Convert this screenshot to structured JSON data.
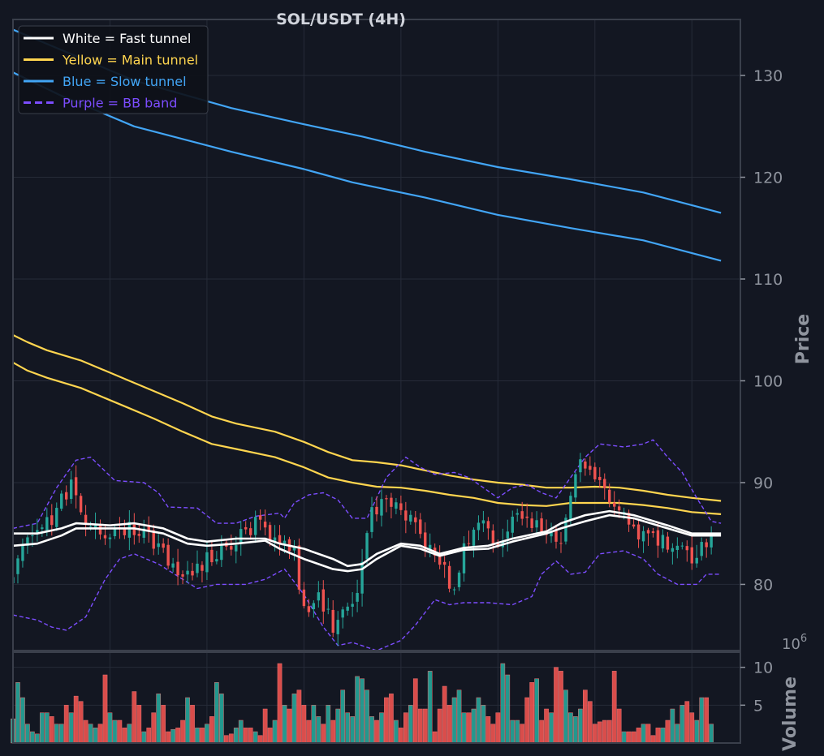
{
  "theme": {
    "background": "#131722",
    "panel": "#131722",
    "grid": "#262b38",
    "spine": "#3a3f4b",
    "tick_text": "#8f949e",
    "title_text": "#d1d4dc",
    "up_color": "#26a69a",
    "down_color": "#ef5350",
    "fast_color": "#ffffff",
    "main_color": "#ffd54f",
    "slow_color": "#42a5f5",
    "bb_color": "#7c4dff"
  },
  "chart_data": {
    "type": "candlestick",
    "title": "SOL/USDT (4H)",
    "price_axis": {
      "label": "Price",
      "ylim": [
        73.5,
        135.5
      ],
      "ticks": [
        80,
        90,
        100,
        110,
        120,
        130
      ]
    },
    "volume_axis": {
      "label": "Volume",
      "exponent_label": "1e6",
      "ylim": [
        0,
        12
      ],
      "ticks": [
        5,
        10
      ]
    },
    "grid": true,
    "legend": {
      "placement": "top-left",
      "entries": [
        {
          "label": "White = Fast tunnel",
          "color": "#ffffff",
          "style": "solid"
        },
        {
          "label": "Yellow = Main tunnel",
          "color": "#ffd54f",
          "style": "solid"
        },
        {
          "label": "Blue = Slow tunnel",
          "color": "#42a5f5",
          "style": "solid"
        },
        {
          "label": "Purple = BB band",
          "color": "#7c4dff",
          "style": "dashed"
        }
      ]
    },
    "x_index_range": [
      0,
      150
    ],
    "price_path": [
      [
        0,
        80.0
      ],
      [
        2,
        84.5
      ],
      [
        5,
        84.8
      ],
      [
        8,
        86.5
      ],
      [
        12,
        90.0
      ],
      [
        15,
        86.0
      ],
      [
        20,
        85.0
      ],
      [
        25,
        85.5
      ],
      [
        30,
        84.0
      ],
      [
        33,
        81.8
      ],
      [
        36,
        81.0
      ],
      [
        40,
        82.5
      ],
      [
        45,
        84.0
      ],
      [
        50,
        86.0
      ],
      [
        55,
        84.5
      ],
      [
        58,
        83.0
      ],
      [
        60,
        77.5
      ],
      [
        63,
        78.5
      ],
      [
        66,
        76.0
      ],
      [
        70,
        78.0
      ],
      [
        72,
        81.5
      ],
      [
        74,
        87.5
      ],
      [
        77,
        88.0
      ],
      [
        80,
        87.0
      ],
      [
        83,
        86.5
      ],
      [
        85,
        84.0
      ],
      [
        88,
        82.0
      ],
      [
        91,
        79.5
      ],
      [
        93,
        84.0
      ],
      [
        96,
        86.0
      ],
      [
        100,
        84.0
      ],
      [
        103,
        86.5
      ],
      [
        105,
        87.0
      ],
      [
        110,
        85.0
      ],
      [
        113,
        84.5
      ],
      [
        115,
        89.0
      ],
      [
        117,
        92.0
      ],
      [
        119,
        91.0
      ],
      [
        121,
        90.0
      ],
      [
        123,
        88.5
      ],
      [
        125,
        88.0
      ],
      [
        128,
        85.0
      ],
      [
        131,
        84.5
      ],
      [
        135,
        84.0
      ],
      [
        140,
        82.5
      ],
      [
        143,
        84.0
      ],
      [
        145,
        86.0
      ],
      [
        146,
        85.5
      ]
    ],
    "volume_profile": [
      3.2,
      8.0,
      6.0,
      2.5,
      1.5,
      1.2,
      4.0,
      4.0,
      3.5,
      2.5,
      2.5,
      5.0,
      4.0,
      6.2,
      5.5,
      3.0,
      2.5,
      2.0,
      2.5,
      9.0,
      4.0,
      3.0,
      3.0,
      2.0,
      2.5,
      6.8,
      5.0,
      1.5,
      2.0,
      4.0,
      6.5,
      5.0,
      1.5,
      1.8,
      2.0,
      3.0,
      6.0,
      5.0,
      2.0,
      2.0,
      2.5,
      3.5,
      8.0,
      6.5,
      1.0,
      1.2,
      2.0,
      3.0,
      2.0,
      2.0,
      1.5,
      1.0,
      4.5,
      2.0,
      3.0,
      10.5,
      5.0,
      4.5,
      6.5,
      7.0,
      5.0,
      3.0,
      5.0,
      3.5,
      2.5,
      5.0,
      3.0,
      4.5,
      7.0,
      4.0,
      3.5,
      8.8,
      8.5,
      7.0,
      3.5,
      3.0,
      4.0,
      6.0,
      6.5,
      3.0,
      2.0,
      4.0,
      5.0,
      8.5,
      4.5,
      4.5,
      9.5,
      1.5,
      4.5,
      7.5,
      5.0,
      6.0,
      7.0,
      4.0,
      4.0,
      4.5,
      6.0,
      5.0,
      3.5,
      2.5,
      4.0,
      10.5,
      9.0,
      3.0,
      3.0,
      2.5,
      6.0,
      8.0,
      8.5,
      3.0,
      4.5,
      4.0,
      10.0,
      9.5,
      7.0,
      4.0,
      3.5,
      4.5,
      7.0,
      5.5,
      2.5,
      2.8,
      3.0,
      3.0,
      9.5,
      4.5,
      1.5,
      1.5,
      1.5,
      2.0,
      2.5,
      2.5,
      1.0,
      2.0,
      2.0,
      3.0,
      4.5,
      2.5,
      5.0,
      5.5,
      4.0,
      3.0,
      6.0,
      6.0,
      2.5
    ],
    "fast_tunnel": {
      "upper": [
        [
          0,
          85.0
        ],
        [
          5,
          85.0
        ],
        [
          10,
          85.5
        ],
        [
          13,
          86.0
        ],
        [
          20,
          85.8
        ],
        [
          25,
          86.0
        ],
        [
          31,
          85.5
        ],
        [
          36,
          84.5
        ],
        [
          40,
          84.2
        ],
        [
          46,
          84.5
        ],
        [
          52,
          84.5
        ],
        [
          55,
          84.0
        ],
        [
          60,
          83.5
        ],
        [
          66,
          82.5
        ],
        [
          69,
          81.8
        ],
        [
          72,
          82.0
        ],
        [
          75,
          83.0
        ],
        [
          80,
          84.0
        ],
        [
          84,
          83.8
        ],
        [
          88,
          83.0
        ],
        [
          93,
          83.6
        ],
        [
          98,
          83.8
        ],
        [
          103,
          84.5
        ],
        [
          110,
          85.2
        ],
        [
          113,
          86.0
        ],
        [
          118,
          86.8
        ],
        [
          123,
          87.2
        ],
        [
          128,
          86.8
        ],
        [
          135,
          85.8
        ],
        [
          140,
          85.0
        ],
        [
          146,
          85.0
        ]
      ],
      "lower": [
        [
          0,
          83.8
        ],
        [
          5,
          84.0
        ],
        [
          10,
          84.8
        ],
        [
          13,
          85.5
        ],
        [
          20,
          85.5
        ],
        [
          25,
          85.5
        ],
        [
          31,
          85.0
        ],
        [
          36,
          84.0
        ],
        [
          40,
          83.8
        ],
        [
          46,
          84.0
        ],
        [
          52,
          84.3
        ],
        [
          55,
          83.5
        ],
        [
          60,
          82.5
        ],
        [
          66,
          81.5
        ],
        [
          69,
          81.3
        ],
        [
          72,
          81.5
        ],
        [
          75,
          82.5
        ],
        [
          80,
          83.8
        ],
        [
          84,
          83.5
        ],
        [
          88,
          82.8
        ],
        [
          93,
          83.4
        ],
        [
          98,
          83.5
        ],
        [
          103,
          84.2
        ],
        [
          110,
          85.0
        ],
        [
          113,
          85.5
        ],
        [
          118,
          86.2
        ],
        [
          123,
          86.8
        ],
        [
          128,
          86.5
        ],
        [
          135,
          85.5
        ],
        [
          140,
          84.8
        ],
        [
          146,
          84.8
        ]
      ]
    },
    "main_tunnel": {
      "upper": [
        [
          0,
          104.5
        ],
        [
          3,
          103.8
        ],
        [
          7,
          103.0
        ],
        [
          14,
          102.0
        ],
        [
          19,
          101.0
        ],
        [
          24,
          100.0
        ],
        [
          29,
          99.0
        ],
        [
          35,
          97.8
        ],
        [
          41,
          96.5
        ],
        [
          46,
          95.8
        ],
        [
          54,
          95.0
        ],
        [
          60,
          94.0
        ],
        [
          65,
          93.0
        ],
        [
          70,
          92.2
        ],
        [
          75,
          92.0
        ],
        [
          80,
          91.7
        ],
        [
          85,
          91.2
        ],
        [
          90,
          90.7
        ],
        [
          95,
          90.3
        ],
        [
          100,
          90.0
        ],
        [
          105,
          89.8
        ],
        [
          110,
          89.5
        ],
        [
          115,
          89.5
        ],
        [
          120,
          89.6
        ],
        [
          125,
          89.5
        ],
        [
          130,
          89.2
        ],
        [
          135,
          88.8
        ],
        [
          140,
          88.5
        ],
        [
          146,
          88.2
        ]
      ],
      "lower": [
        [
          0,
          101.8
        ],
        [
          3,
          101.0
        ],
        [
          7,
          100.3
        ],
        [
          14,
          99.3
        ],
        [
          19,
          98.3
        ],
        [
          24,
          97.3
        ],
        [
          29,
          96.3
        ],
        [
          35,
          95.0
        ],
        [
          41,
          93.8
        ],
        [
          46,
          93.3
        ],
        [
          54,
          92.5
        ],
        [
          60,
          91.5
        ],
        [
          65,
          90.5
        ],
        [
          70,
          90.0
        ],
        [
          75,
          89.6
        ],
        [
          80,
          89.5
        ],
        [
          85,
          89.2
        ],
        [
          90,
          88.8
        ],
        [
          95,
          88.5
        ],
        [
          100,
          88.0
        ],
        [
          105,
          87.8
        ],
        [
          110,
          87.7
        ],
        [
          115,
          88.0
        ],
        [
          120,
          88.0
        ],
        [
          125,
          88.0
        ],
        [
          130,
          87.8
        ],
        [
          135,
          87.5
        ],
        [
          140,
          87.1
        ],
        [
          146,
          86.9
        ]
      ]
    },
    "slow_tunnel": {
      "upper": [
        [
          0,
          134.5
        ],
        [
          10,
          132.5
        ],
        [
          25,
          129.5
        ],
        [
          45,
          126.8
        ],
        [
          60,
          125.2
        ],
        [
          72,
          124.0
        ],
        [
          85,
          122.5
        ],
        [
          100,
          121.0
        ],
        [
          115,
          119.8
        ],
        [
          130,
          118.5
        ],
        [
          146,
          116.5
        ]
      ],
      "lower": [
        [
          0,
          130.3
        ],
        [
          10,
          128.0
        ],
        [
          25,
          125.0
        ],
        [
          45,
          122.5
        ],
        [
          60,
          120.8
        ],
        [
          70,
          119.5
        ],
        [
          85,
          118.0
        ],
        [
          100,
          116.3
        ],
        [
          115,
          115.0
        ],
        [
          130,
          113.8
        ],
        [
          146,
          111.8
        ]
      ]
    },
    "bb_band": {
      "upper": [
        [
          0,
          85.5
        ],
        [
          5,
          86.0
        ],
        [
          9,
          89.5
        ],
        [
          13,
          92.2
        ],
        [
          16,
          92.5
        ],
        [
          21,
          90.2
        ],
        [
          27,
          90.0
        ],
        [
          30,
          89.0
        ],
        [
          32,
          87.6
        ],
        [
          38,
          87.5
        ],
        [
          42,
          86.0
        ],
        [
          46,
          86.0
        ],
        [
          50,
          86.7
        ],
        [
          55,
          87.0
        ],
        [
          56,
          86.5
        ],
        [
          58,
          88.0
        ],
        [
          61,
          88.8
        ],
        [
          64,
          89.0
        ],
        [
          67,
          88.3
        ],
        [
          70,
          86.5
        ],
        [
          73,
          86.5
        ],
        [
          77,
          90.5
        ],
        [
          81,
          92.5
        ],
        [
          84,
          91.5
        ],
        [
          87,
          90.8
        ],
        [
          91,
          91.0
        ],
        [
          94,
          90.5
        ],
        [
          97,
          89.5
        ],
        [
          100,
          88.5
        ],
        [
          103,
          89.5
        ],
        [
          106,
          89.8
        ],
        [
          109,
          89.0
        ],
        [
          112,
          88.5
        ],
        [
          115,
          90.5
        ],
        [
          118,
          92.5
        ],
        [
          121,
          93.8
        ],
        [
          126,
          93.5
        ],
        [
          130,
          93.8
        ],
        [
          132,
          94.2
        ],
        [
          135,
          92.5
        ],
        [
          138,
          91.0
        ],
        [
          141,
          88.5
        ],
        [
          144,
          86.2
        ],
        [
          146,
          86.0
        ]
      ],
      "lower": [
        [
          0,
          77.0
        ],
        [
          5,
          76.5
        ],
        [
          8,
          75.8
        ],
        [
          11,
          75.5
        ],
        [
          15,
          76.8
        ],
        [
          19,
          80.5
        ],
        [
          22,
          82.5
        ],
        [
          25,
          83.0
        ],
        [
          30,
          82.0
        ],
        [
          35,
          80.5
        ],
        [
          38,
          79.6
        ],
        [
          42,
          80.0
        ],
        [
          48,
          80.0
        ],
        [
          52,
          80.5
        ],
        [
          56,
          81.5
        ],
        [
          60,
          79.0
        ],
        [
          64,
          75.8
        ],
        [
          67,
          74.0
        ],
        [
          70,
          74.3
        ],
        [
          75,
          73.5
        ],
        [
          80,
          74.5
        ],
        [
          83,
          76.0
        ],
        [
          87,
          78.5
        ],
        [
          90,
          78.0
        ],
        [
          93,
          78.2
        ],
        [
          98,
          78.2
        ],
        [
          103,
          78.0
        ],
        [
          107,
          78.8
        ],
        [
          109,
          81.0
        ],
        [
          112,
          82.3
        ],
        [
          115,
          81.0
        ],
        [
          118,
          81.2
        ],
        [
          121,
          83.0
        ],
        [
          126,
          83.3
        ],
        [
          130,
          82.5
        ],
        [
          133,
          81.0
        ],
        [
          137,
          80.0
        ],
        [
          141,
          80.0
        ],
        [
          143,
          81.0
        ],
        [
          146,
          81.0
        ]
      ]
    }
  }
}
